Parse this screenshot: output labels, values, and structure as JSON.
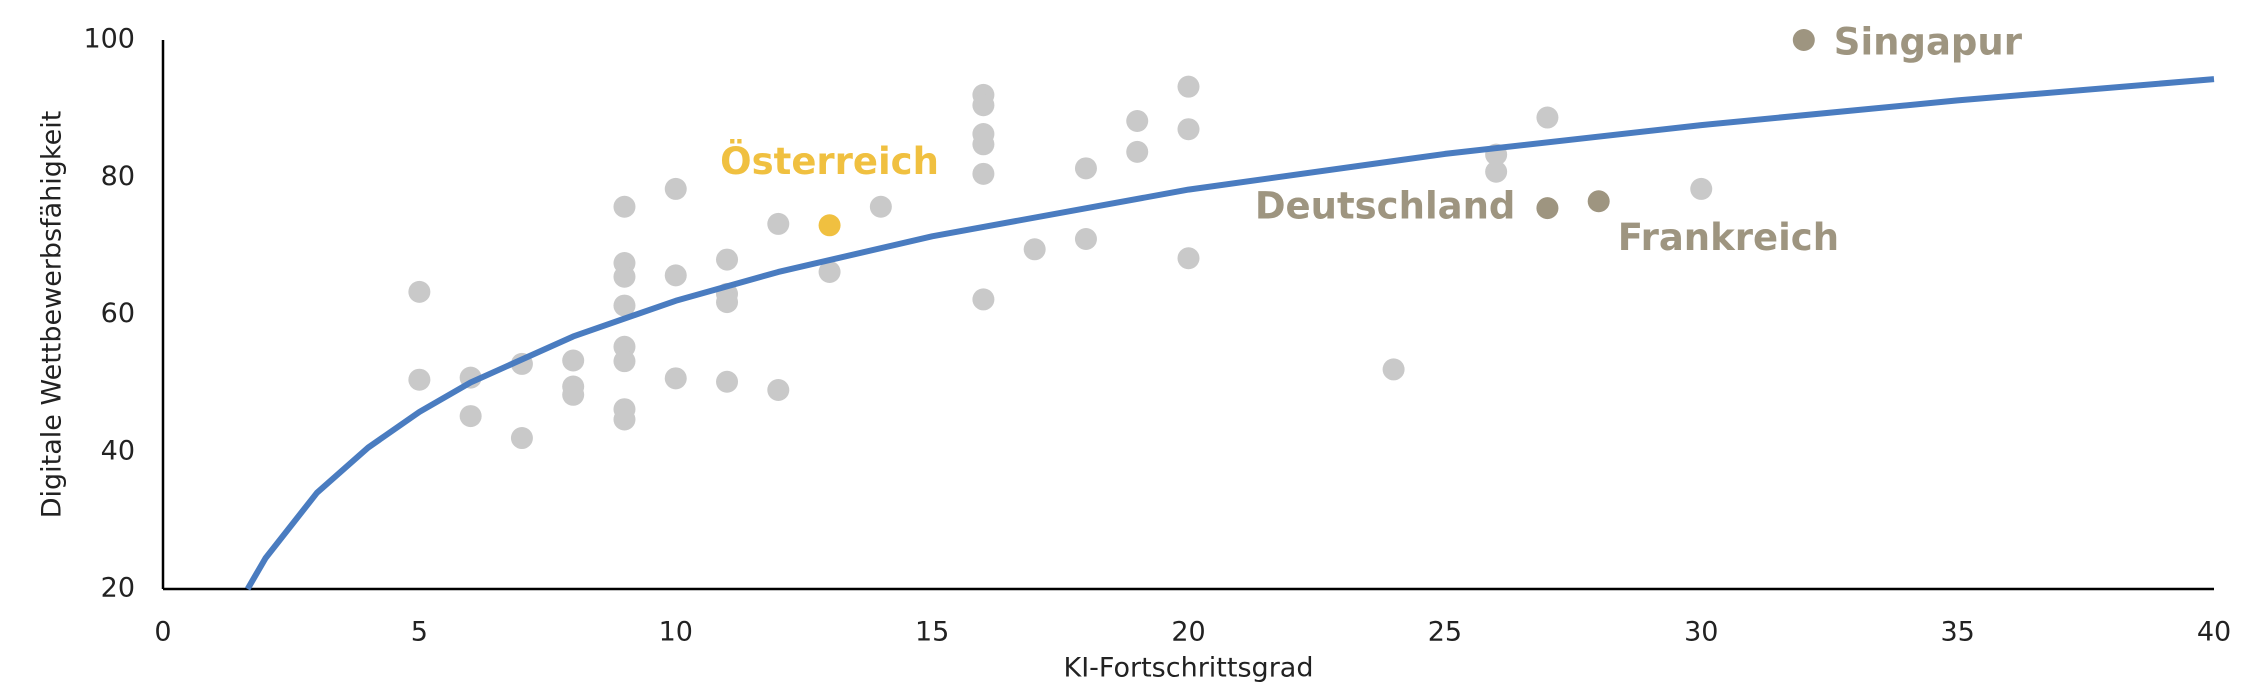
{
  "chart_data": {
    "type": "scatter",
    "x_label": "KI-Fortschrittsgrad",
    "y_label": "Digitale Wettbewerbsfähigkeit",
    "xlim": [
      0,
      40
    ],
    "xticks": [
      0,
      5,
      10,
      15,
      20,
      25,
      30,
      35,
      40
    ],
    "ylim": [
      20,
      100
    ],
    "yticks": [
      20,
      40,
      60,
      80,
      100
    ],
    "series": [
      {
        "type": "scatter",
        "color": "#c9c9c9",
        "x": [
          5,
          5,
          6,
          6,
          7,
          7,
          8,
          8,
          8,
          9,
          9,
          9,
          9,
          9,
          9,
          9,
          9,
          10,
          10,
          10,
          11,
          11,
          11,
          11,
          12,
          12,
          13,
          14,
          16,
          16,
          16,
          16,
          16,
          16,
          17,
          18,
          18,
          19,
          19,
          20,
          20,
          20,
          24,
          26,
          26,
          27,
          30
        ],
        "values": [
          63.3,
          50.5,
          50.8,
          45.2,
          52.8,
          42,
          53.3,
          49.5,
          48.3,
          75.7,
          67.5,
          65.5,
          61.3,
          55.3,
          53.2,
          46.2,
          44.7,
          78.3,
          65.7,
          50.7,
          68,
          63,
          61.8,
          50.2,
          73.2,
          49,
          66.2,
          75.7,
          92,
          90.5,
          86.3,
          84.8,
          80.5,
          62.2,
          69.5,
          81.3,
          71,
          88.2,
          83.7,
          93.2,
          87,
          68.2,
          52,
          83.3,
          80.8,
          88.7,
          78.3
        ]
      },
      {
        "type": "line",
        "color": "#4a7cc0",
        "x": [
          1.65,
          2,
          3,
          4,
          5,
          6,
          8,
          10,
          12,
          15,
          20,
          25,
          30,
          35,
          40
        ],
        "values": [
          20,
          24.5,
          34,
          40.6,
          45.8,
          50.1,
          56.8,
          62,
          66.2,
          71.4,
          78.2,
          83.4,
          87.6,
          91.2,
          94.3
        ]
      },
      {
        "type": "scatter",
        "color": "#f0c040",
        "x": [
          13
        ],
        "values": [
          73
        ],
        "labels": [
          "Österreich"
        ]
      },
      {
        "type": "scatter",
        "color": "#9e9580",
        "x": [
          27,
          28,
          32
        ],
        "values": [
          75.5,
          76.5,
          100
        ],
        "labels": [
          "Deutschland",
          "Frankreich",
          "Singapur"
        ]
      }
    ]
  }
}
